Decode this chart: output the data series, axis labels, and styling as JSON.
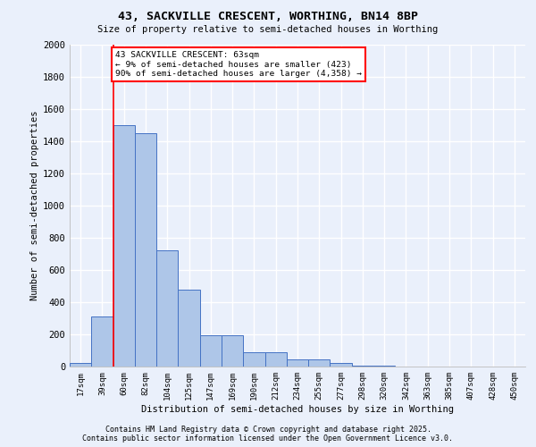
{
  "title1": "43, SACKVILLE CRESCENT, WORTHING, BN14 8BP",
  "title2": "Size of property relative to semi-detached houses in Worthing",
  "xlabel": "Distribution of semi-detached houses by size in Worthing",
  "ylabel": "Number of semi-detached properties",
  "bin_labels": [
    "17sqm",
    "39sqm",
    "60sqm",
    "82sqm",
    "104sqm",
    "125sqm",
    "147sqm",
    "169sqm",
    "190sqm",
    "212sqm",
    "234sqm",
    "255sqm",
    "277sqm",
    "298sqm",
    "320sqm",
    "342sqm",
    "363sqm",
    "385sqm",
    "407sqm",
    "428sqm",
    "450sqm"
  ],
  "bar_values": [
    20,
    310,
    1500,
    1450,
    720,
    480,
    195,
    195,
    90,
    90,
    45,
    45,
    20,
    5,
    5,
    0,
    0,
    0,
    0,
    0,
    0
  ],
  "bar_color": "#aec6e8",
  "bar_edge_color": "#4472c4",
  "bg_color": "#eaf0fb",
  "grid_color": "#ffffff",
  "red_line_bin_index": 2,
  "annotation_text": "43 SACKVILLE CRESCENT: 63sqm\n← 9% of semi-detached houses are smaller (423)\n90% of semi-detached houses are larger (4,358) →",
  "annotation_box_color": "white",
  "annotation_box_edge": "red",
  "footnote1": "Contains HM Land Registry data © Crown copyright and database right 2025.",
  "footnote2": "Contains public sector information licensed under the Open Government Licence v3.0.",
  "ylim": [
    0,
    2000
  ],
  "yticks": [
    0,
    200,
    400,
    600,
    800,
    1000,
    1200,
    1400,
    1600,
    1800,
    2000
  ]
}
